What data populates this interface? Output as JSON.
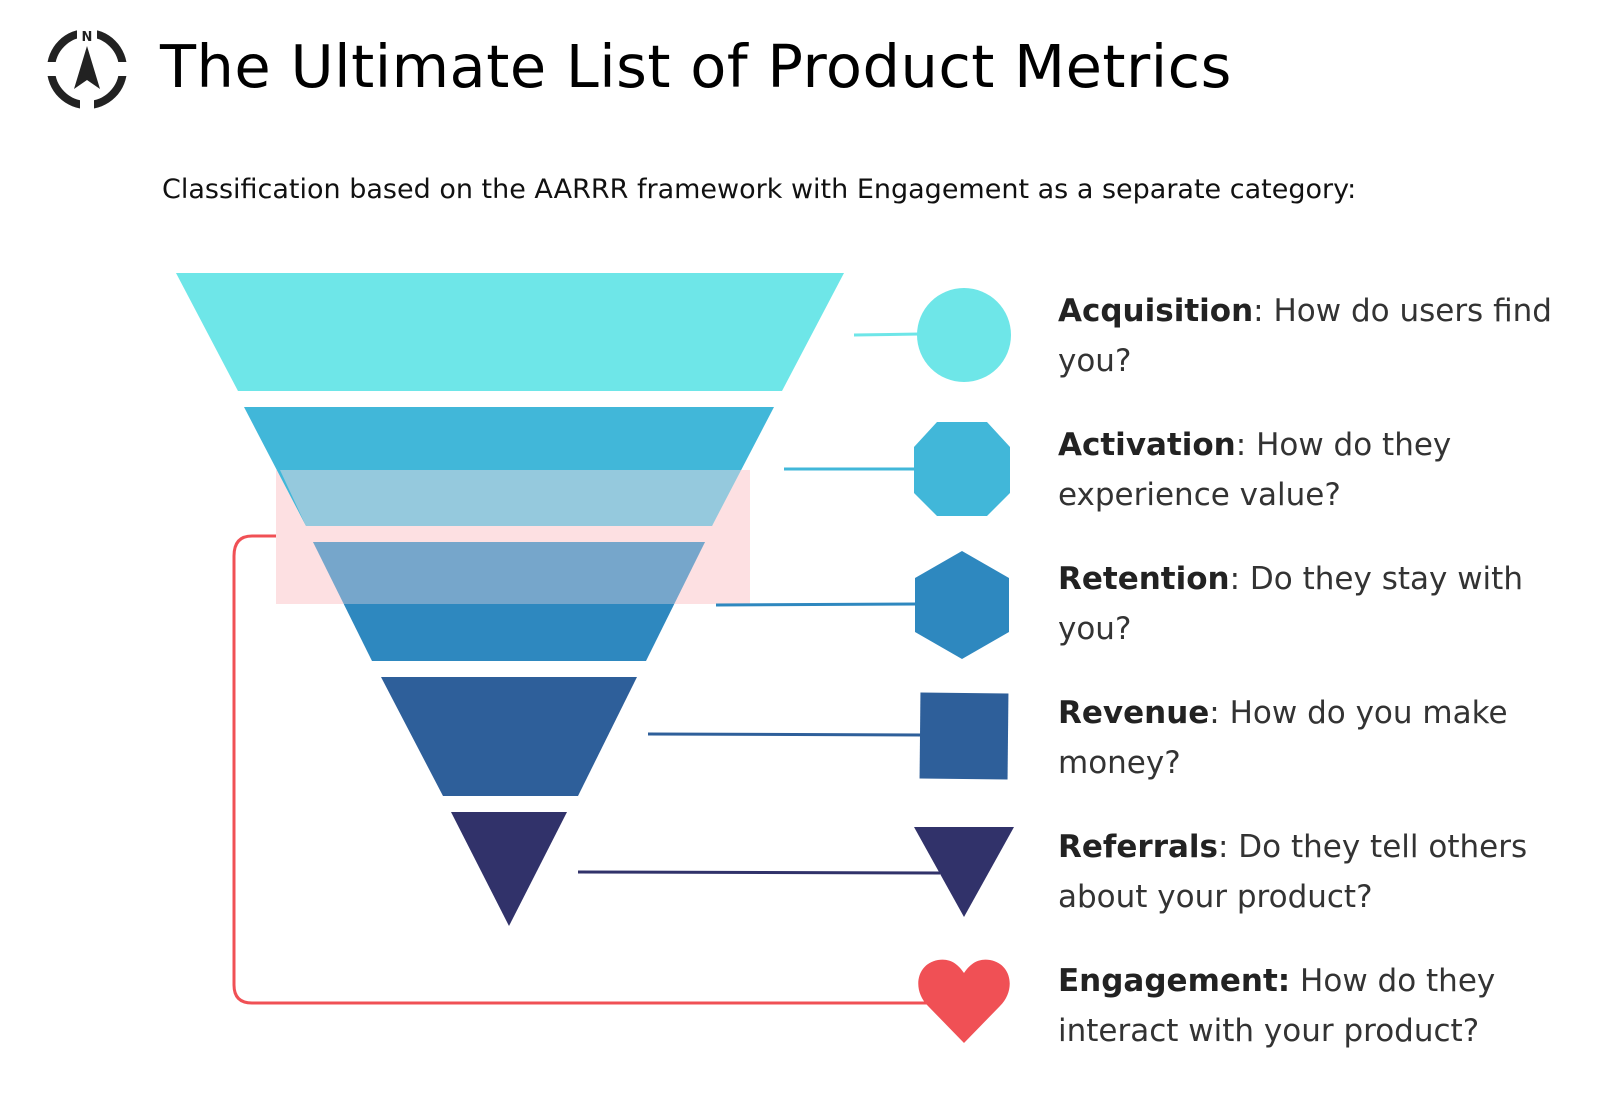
{
  "header": {
    "title": "The Ultimate List of Product Metrics",
    "compass_letter": "N",
    "icon": "compass-icon"
  },
  "subtitle": "Classification based on the AARRR framework with Engagement as a separate category:",
  "stages": [
    {
      "term": "Acquisition",
      "sep": ":",
      "question": " How do users find you?",
      "color": "#6ee6e8",
      "shape": "circle"
    },
    {
      "term": "Activation",
      "sep": ":",
      "question": " How do they experience value?",
      "color": "#41b7d9",
      "shape": "octagon"
    },
    {
      "term": "Retention",
      "sep": ":",
      "question": " Do they stay with you?",
      "color": "#2e88bf",
      "shape": "hexagon"
    },
    {
      "term": "Revenue",
      "sep": ":",
      "question": " How do you make money?",
      "color": "#2e5f9a",
      "shape": "square"
    },
    {
      "term": "Referrals",
      "sep": ":",
      "question": " Do they tell others about your product?",
      "color": "#31326a",
      "shape": "triangle"
    },
    {
      "term": "Engagement:",
      "sep": "",
      "question": " How do they interact with your product?",
      "color": "#f05055",
      "shape": "heart"
    }
  ],
  "colors": {
    "highlight": "#fde0e2",
    "engagement_line": "#f05055"
  }
}
